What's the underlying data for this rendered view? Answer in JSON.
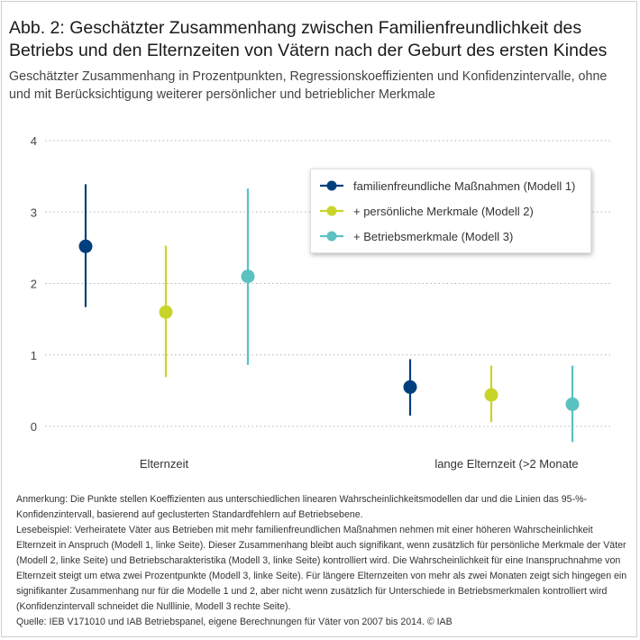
{
  "header": {
    "title": "Abb. 2: Geschätzter Zusammenhang zwischen Familienfreundlichkeit des Betriebs und den Elternzeiten von Vätern nach der Geburt des ersten Kindes",
    "subtitle": "Geschätzter Zusammenhang in Prozentpunkten, Regressionskoeffizienten und Konfidenzintervalle, ohne und mit Berücksichtigung weiterer persönlicher und betrieblicher Merkmale"
  },
  "chart_data": {
    "type": "scatter",
    "subtype": "point-estimates-with-confidence-intervals",
    "categories": [
      "Elternzeit",
      "lange Elternzeit (>2 Monate"
    ],
    "ylim": [
      -0.2,
      4
    ],
    "yticks": [
      0,
      1,
      2,
      3,
      4
    ],
    "grid": true,
    "legend_position": "top-right",
    "series": [
      {
        "name": "familienfreundliche Maßnahmen (Modell 1)",
        "color": "#003f7d",
        "values": [
          2.52,
          0.55
        ],
        "ci_low": [
          1.67,
          0.15
        ],
        "ci_high": [
          3.39,
          0.94
        ]
      },
      {
        "name": "+ persönliche Merkmale (Modell 2)",
        "color": "#c9d42a",
        "values": [
          1.6,
          0.44
        ],
        "ci_low": [
          0.69,
          0.06
        ],
        "ci_high": [
          2.53,
          0.85
        ]
      },
      {
        "name": "+ Betriebsmerkmale (Modell 3)",
        "color": "#5bc2c2",
        "values": [
          2.1,
          0.31
        ],
        "ci_low": [
          0.86,
          -0.22
        ],
        "ci_high": [
          3.33,
          0.85
        ]
      }
    ]
  },
  "notes": {
    "anmerkung": "Anmerkung: Die Punkte stellen Koeffizienten aus unterschiedlichen linearen Wahrscheinlichkeitsmodellen dar und die Linien das 95-%-Konfidenzintervall, basierend auf geclusterten Standardfehlern auf Betriebsebene.",
    "lesebeispiel": "Lesebeispiel: Verheiratete Väter aus Betrieben mit mehr familienfreundlichen Maßnahmen nehmen mit einer höheren Wahrscheinlichkeit Elternzeit in Anspruch (Modell 1, linke Seite). Dieser Zusammenhang bleibt auch signifikant, wenn zusätzlich für persönliche Merkmale der Väter (Modell 2, linke Seite) und Betriebscharakteristika (Modell 3, linke Seite) kontrolliert wird. Die Wahrscheinlichkeit für eine Inanspruchnahme von Elternzeit steigt um etwa zwei Prozentpunkte (Modell 3, linke Seite). Für längere Elternzeiten von mehr als zwei Monaten zeigt sich hingegen ein signifikanter Zusammenhang nur für die Modelle 1 und 2, aber nicht wenn zusätzlich für Unterschiede in Betriebsmerkmalen kontrolliert wird (Konfidenzintervall schneidet die Nulllinie, Modell 3 rechte Seite).",
    "quelle": "Quelle: IEB V171010 und IAB Betriebspanel, eigene Berechnungen für Väter von 2007 bis 2014.  © IAB"
  }
}
